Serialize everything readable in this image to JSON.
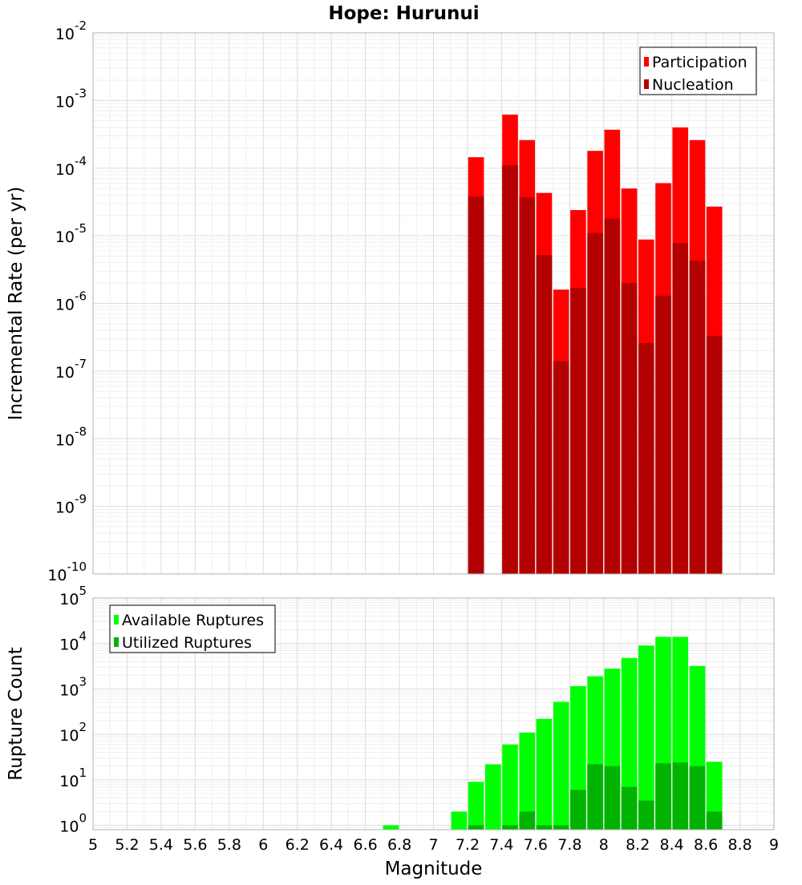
{
  "chart_data": [
    {
      "type": "bar",
      "title": "Hope: Hurunui",
      "ylabel": "Incremental Rate (per yr)",
      "xlabel": "",
      "yscale": "log",
      "ylim": [
        1e-10,
        0.01
      ],
      "xlim": [
        5,
        9
      ],
      "y_tick_labels": [
        {
          "base": "10",
          "exp": "-10"
        },
        {
          "base": "10",
          "exp": "-9"
        },
        {
          "base": "10",
          "exp": "-8"
        },
        {
          "base": "10",
          "exp": "-7"
        },
        {
          "base": "10",
          "exp": "-6"
        },
        {
          "base": "10",
          "exp": "-5"
        },
        {
          "base": "10",
          "exp": "-4"
        },
        {
          "base": "10",
          "exp": "-3"
        },
        {
          "base": "10",
          "exp": "-2"
        }
      ],
      "grid": true,
      "legend_position": "top-right",
      "x": [
        7.25,
        7.35,
        7.45,
        7.55,
        7.65,
        7.75,
        7.85,
        7.95,
        8.05,
        8.15,
        8.25,
        8.35,
        8.45,
        8.55,
        8.65
      ],
      "series": [
        {
          "name": "Participation",
          "color": "#ff0000",
          "values": [
            0.000145,
            null,
            0.00062,
            0.00026,
            4.3e-05,
            1.6e-06,
            2.4e-05,
            0.00018,
            0.00037,
            5e-05,
            8.8e-06,
            6e-05,
            0.0004,
            0.00026,
            2.7e-05
          ]
        },
        {
          "name": "Nucleation",
          "color": "#b30000",
          "values": [
            3.8e-05,
            null,
            0.00011,
            3.7e-05,
            5.2e-06,
            1.4e-07,
            1.7e-06,
            1.1e-05,
            1.8e-05,
            2e-06,
            2.6e-07,
            1.3e-06,
            7.8e-06,
            4.3e-06,
            3.3e-07
          ]
        }
      ]
    },
    {
      "type": "bar",
      "title": "",
      "ylabel": "Rupture Count",
      "xlabel": "Magnitude",
      "yscale": "log",
      "ylim": [
        0.8,
        100000
      ],
      "xlim": [
        5,
        9
      ],
      "x_tick_labels": [
        "5",
        "5.2",
        "5.4",
        "5.6",
        "5.8",
        "6",
        "6.2",
        "6.4",
        "6.6",
        "6.8",
        "7",
        "7.2",
        "7.4",
        "7.6",
        "7.8",
        "8",
        "8.2",
        "8.4",
        "8.6",
        "8.8",
        "9"
      ],
      "y_tick_labels": [
        {
          "base": "10",
          "exp": "0"
        },
        {
          "base": "10",
          "exp": "1"
        },
        {
          "base": "10",
          "exp": "2"
        },
        {
          "base": "10",
          "exp": "3"
        },
        {
          "base": "10",
          "exp": "4"
        },
        {
          "base": "10",
          "exp": "5"
        }
      ],
      "grid": true,
      "legend_position": "top-left",
      "x": [
        6.75,
        7.15,
        7.25,
        7.35,
        7.45,
        7.55,
        7.65,
        7.75,
        7.85,
        7.95,
        8.05,
        8.15,
        8.25,
        8.35,
        8.45,
        8.55,
        8.65
      ],
      "series": [
        {
          "name": "Available Ruptures",
          "color": "#00ff00",
          "values": [
            1,
            2,
            9,
            22,
            60,
            110,
            220,
            520,
            1150,
            1900,
            2800,
            4800,
            9000,
            14000,
            14000,
            3200,
            25
          ]
        },
        {
          "name": "Utilized Ruptures",
          "color": "#00b300",
          "values": [
            null,
            null,
            1,
            null,
            1,
            2,
            1,
            1,
            6,
            22,
            20,
            7,
            3.5,
            23,
            24,
            20,
            2
          ]
        }
      ]
    }
  ]
}
